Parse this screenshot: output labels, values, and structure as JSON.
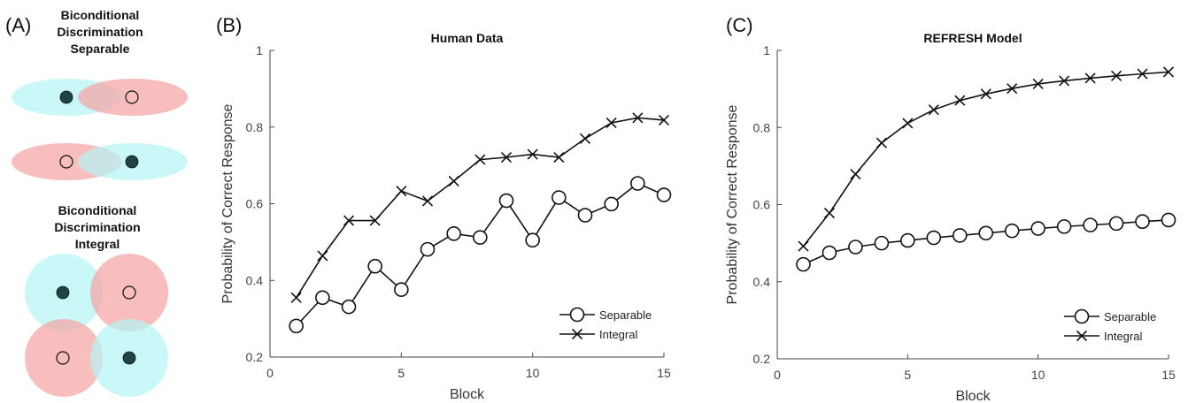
{
  "panels": {
    "a": {
      "letter": "(A)"
    },
    "b": {
      "letter": "(B)"
    },
    "c": {
      "letter": "(C)"
    }
  },
  "diagram": {
    "separable_title": [
      "Biconditional",
      "Discrimination",
      "Separable"
    ],
    "integral_title": [
      "Biconditional",
      "Discrimination",
      "Integral"
    ],
    "colors": {
      "cyan": "#b3f3f3",
      "red": "#f5a3a3",
      "dot": "#1f4444"
    }
  },
  "chart_data": [
    {
      "type": "line",
      "title": "Human Data",
      "xlabel": "Block",
      "ylabel": "Probability of Correct Response",
      "xlim": [
        0,
        15
      ],
      "ylim": [
        0.2,
        1
      ],
      "xticks": [
        "0",
        "5",
        "10",
        "15"
      ],
      "yticks": [
        "0.2",
        "0.4",
        "0.6",
        "0.8",
        "1"
      ],
      "legend_position": "bottom-right",
      "grid": false,
      "x": [
        1,
        2,
        3,
        4,
        5,
        6,
        7,
        8,
        9,
        10,
        11,
        12,
        13,
        14,
        15
      ],
      "series": [
        {
          "name": "Separable",
          "marker": "circle",
          "values": [
            0.281,
            0.355,
            0.331,
            0.437,
            0.376,
            0.481,
            0.522,
            0.512,
            0.608,
            0.505,
            0.616,
            0.57,
            0.599,
            0.653,
            0.623
          ]
        },
        {
          "name": "Integral",
          "marker": "x",
          "values": [
            0.355,
            0.464,
            0.556,
            0.556,
            0.633,
            0.607,
            0.659,
            0.715,
            0.721,
            0.729,
            0.721,
            0.77,
            0.811,
            0.824,
            0.818
          ]
        }
      ]
    },
    {
      "type": "line",
      "title": "REFRESH Model",
      "xlabel": "Block",
      "ylabel": "Probability of Correct Response",
      "xlim": [
        0,
        15
      ],
      "ylim": [
        0.2,
        1
      ],
      "xticks": [
        "0",
        "5",
        "10",
        "15"
      ],
      "yticks": [
        "0.2",
        "0.4",
        "0.6",
        "0.8",
        "1"
      ],
      "legend_position": "bottom-right",
      "grid": false,
      "x": [
        1,
        2,
        3,
        4,
        5,
        6,
        7,
        8,
        9,
        10,
        11,
        12,
        13,
        14,
        15
      ],
      "series": [
        {
          "name": "Separable",
          "marker": "circle",
          "values": [
            0.445,
            0.475,
            0.49,
            0.5,
            0.507,
            0.514,
            0.52,
            0.526,
            0.532,
            0.538,
            0.543,
            0.547,
            0.551,
            0.556,
            0.56
          ]
        },
        {
          "name": "Integral",
          "marker": "x",
          "values": [
            0.492,
            0.578,
            0.679,
            0.76,
            0.811,
            0.846,
            0.87,
            0.887,
            0.901,
            0.913,
            0.921,
            0.928,
            0.934,
            0.939,
            0.944
          ]
        }
      ]
    }
  ]
}
